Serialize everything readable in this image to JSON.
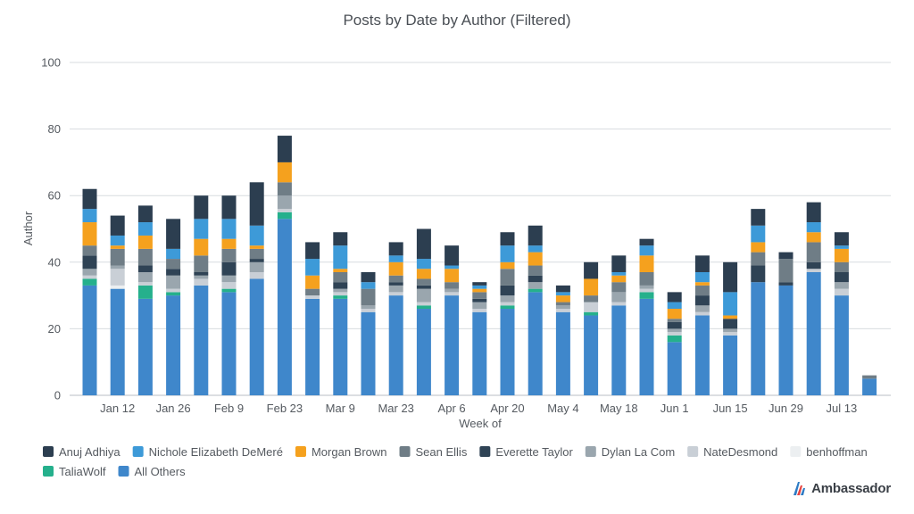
{
  "chart_data": {
    "type": "bar",
    "stacked": true,
    "title": "Posts by Date by Author (Filtered)",
    "xlabel": "Week of",
    "ylabel": "Author",
    "ylim": [
      0,
      100
    ],
    "yticks": [
      0,
      20,
      40,
      60,
      80,
      100
    ],
    "grid": true,
    "legend_position": "bottom-left",
    "x_tick_labels": [
      "",
      "Jan 12",
      "",
      "Jan 26",
      "",
      "Feb 9",
      "",
      "Feb 23",
      "",
      "Mar 9",
      "",
      "Mar 23",
      "",
      "Apr 6",
      "",
      "Apr 20",
      "",
      "May 4",
      "",
      "May 18",
      "",
      "Jun 1",
      "",
      "Jun 15",
      "",
      "Jun 29",
      "",
      "Jul 13",
      ""
    ],
    "series": [
      {
        "name": "All Others",
        "color": "#3f87cb",
        "values": [
          33,
          32,
          29,
          30,
          33,
          31,
          35,
          53,
          29,
          29,
          25,
          30,
          26,
          30,
          25,
          26,
          31,
          25,
          24,
          27,
          29,
          16,
          24,
          18,
          34,
          33,
          37,
          30,
          5
        ]
      },
      {
        "name": "TaliaWolf",
        "color": "#25b08c",
        "values": [
          2,
          0,
          4,
          1,
          0,
          1,
          0,
          2,
          0,
          1,
          0,
          0,
          1,
          0,
          0,
          1,
          1,
          0,
          1,
          0,
          2,
          2,
          0,
          0,
          0,
          0,
          0,
          0,
          0
        ]
      },
      {
        "name": "benhoffman",
        "color": "#eceff1",
        "values": [
          0,
          1,
          0,
          0,
          0,
          0,
          0,
          0,
          0,
          0,
          0,
          0,
          0,
          0,
          0,
          0,
          0,
          0,
          0,
          0,
          0,
          0,
          0,
          0,
          0,
          0,
          0,
          0,
          0
        ]
      },
      {
        "name": "NateDesmond",
        "color": "#c9cfd6",
        "values": [
          1,
          5,
          1,
          1,
          2,
          2,
          2,
          1,
          1,
          1,
          1,
          1,
          1,
          1,
          1,
          1,
          0,
          1,
          3,
          1,
          1,
          1,
          1,
          1,
          0,
          0,
          1,
          2,
          0
        ]
      },
      {
        "name": "Dylan La Com",
        "color": "#9aa6ae",
        "values": [
          2,
          1,
          3,
          4,
          1,
          2,
          3,
          4,
          0,
          1,
          1,
          2,
          4,
          1,
          2,
          2,
          2,
          1,
          0,
          3,
          1,
          1,
          2,
          1,
          0,
          0,
          0,
          2,
          0
        ]
      },
      {
        "name": "Everette Taylor",
        "color": "#2f4355",
        "values": [
          4,
          0,
          2,
          2,
          1,
          4,
          1,
          0,
          0,
          2,
          0,
          1,
          1,
          0,
          1,
          3,
          2,
          0,
          0,
          0,
          0,
          2,
          3,
          3,
          5,
          1,
          2,
          3,
          0
        ]
      },
      {
        "name": "Sean Ellis",
        "color": "#6f7d86",
        "values": [
          3,
          5,
          5,
          3,
          5,
          4,
          3,
          4,
          2,
          3,
          5,
          2,
          2,
          2,
          2,
          5,
          3,
          1,
          2,
          3,
          4,
          1,
          3,
          0,
          4,
          7,
          6,
          3,
          1
        ]
      },
      {
        "name": "Morgan Brown",
        "color": "#f5a11e",
        "values": [
          7,
          1,
          4,
          0,
          5,
          3,
          1,
          6,
          4,
          1,
          0,
          4,
          3,
          4,
          1,
          2,
          4,
          2,
          5,
          2,
          5,
          3,
          1,
          1,
          3,
          0,
          3,
          4,
          0
        ]
      },
      {
        "name": "Nichole Elizabeth DeMeré",
        "color": "#3d9ad8",
        "values": [
          4,
          3,
          4,
          3,
          6,
          6,
          6,
          0,
          5,
          7,
          2,
          2,
          3,
          1,
          1,
          5,
          2,
          1,
          0,
          1,
          3,
          2,
          3,
          7,
          5,
          0,
          3,
          1,
          0
        ]
      },
      {
        "name": "Anuj Adhiya",
        "color": "#2c3e50",
        "values": [
          6,
          6,
          5,
          9,
          7,
          7,
          13,
          8,
          5,
          4,
          3,
          4,
          9,
          6,
          1,
          4,
          6,
          2,
          5,
          5,
          2,
          3,
          5,
          9,
          5,
          2,
          6,
          4,
          0
        ]
      }
    ],
    "legend_order": [
      "Anuj Adhiya",
      "Nichole Elizabeth DeMeré",
      "Morgan Brown",
      "Sean Ellis",
      "Everette Taylor",
      "Dylan La Com",
      "NateDesmond",
      "benhoffman",
      "TaliaWolf",
      "All Others"
    ]
  },
  "logo": {
    "text": "Ambassador",
    "icon": "ambassador-logo-icon",
    "colors": [
      "#2e7bc4",
      "#e8423f"
    ]
  }
}
